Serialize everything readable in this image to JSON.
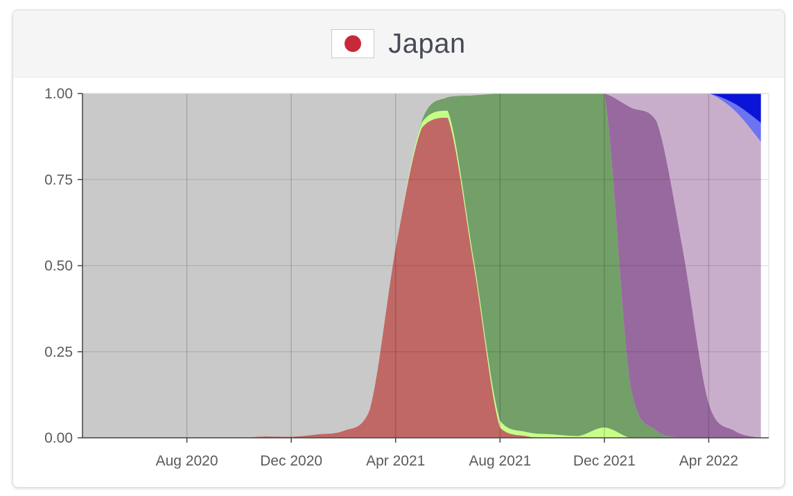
{
  "header": {
    "title": "Japan",
    "flag_icon": "japan-flag-icon"
  },
  "colors": {
    "background_other": "#c9c9c9",
    "alpha_red": "#c06865",
    "light_green": "#c6ff88",
    "delta_green": "#739f68",
    "omicron_purple": "#98699e",
    "omicron_lilac": "#c9aecb",
    "blue_dark": "#0a14d8",
    "blue_light": "#6b73ef"
  },
  "chart_data": {
    "type": "area",
    "stacked": true,
    "x_unit": "month",
    "x": [
      "2020-04",
      "2020-05",
      "2020-06",
      "2020-07",
      "2020-08",
      "2020-09",
      "2020-10",
      "2020-11",
      "2020-12",
      "2021-01",
      "2021-02",
      "2021-03",
      "2021-04",
      "2021-05",
      "2021-06",
      "2021-07",
      "2021-08",
      "2021-09",
      "2021-10",
      "2021-11",
      "2021-12",
      "2022-01",
      "2022-02",
      "2022-03",
      "2022-04",
      "2022-05",
      "2022-06"
    ],
    "ylim": [
      0,
      1
    ],
    "xlim": [
      "2020-04",
      "2022-06-10"
    ],
    "x_tick_labels": [
      "Aug 2020",
      "Dec 2020",
      "Apr 2021",
      "Aug 2021",
      "Dec 2021",
      "Apr 2022"
    ],
    "x_ticks": [
      "2020-08",
      "2020-12",
      "2021-04",
      "2021-08",
      "2021-12",
      "2022-04"
    ],
    "y_ticks": [
      0,
      0.25,
      0.5,
      0.75,
      1
    ],
    "y_tick_labels": [
      "0.00",
      "0.25",
      "0.50",
      "0.75",
      "1.00"
    ],
    "grid": true,
    "legend": false,
    "series": [
      {
        "key": "s1",
        "color": "#c06865",
        "values": [
          0,
          0,
          0,
          0,
          0,
          0,
          0,
          0.004,
          0.003,
          0.01,
          0.02,
          0.08,
          0.55,
          0.9,
          0.93,
          0.5,
          0.03,
          0.005,
          0,
          0,
          0,
          0,
          0,
          0,
          0,
          0,
          0
        ]
      },
      {
        "key": "s2",
        "color": "#c6ff88",
        "values": [
          0,
          0,
          0,
          0,
          0,
          0,
          0,
          0,
          0,
          0,
          0,
          0,
          0,
          0.015,
          0.02,
          0.015,
          0.02,
          0.012,
          0.01,
          0.005,
          0.03,
          0,
          0,
          0,
          0,
          0,
          0
        ]
      },
      {
        "key": "s3",
        "color": "#739f68",
        "values": [
          0,
          0,
          0,
          0,
          0,
          0,
          0,
          0,
          0,
          0,
          0,
          0,
          0,
          0.005,
          0.04,
          0.48,
          0.95,
          0.983,
          0.99,
          0.995,
          0.97,
          0.15,
          0.02,
          0,
          0,
          0,
          0
        ]
      },
      {
        "key": "s4",
        "color": "#98699e",
        "values": [
          0,
          0,
          0,
          0,
          0,
          0,
          0,
          0,
          0,
          0,
          0,
          0,
          0,
          0,
          0,
          0,
          0,
          0,
          0,
          0,
          0,
          0.81,
          0.9,
          0.55,
          0.1,
          0.02,
          0
        ]
      },
      {
        "key": "s5",
        "color": "#c9aecb",
        "values": [
          0,
          0,
          0,
          0,
          0,
          0,
          0,
          0,
          0,
          0,
          0,
          0,
          0,
          0,
          0,
          0,
          0,
          0,
          0,
          0,
          0,
          0.04,
          0.08,
          0.45,
          0.9,
          0.93,
          0.86
        ]
      },
      {
        "key": "s6",
        "color": "#6b73ef",
        "values": [
          0,
          0,
          0,
          0,
          0,
          0,
          0,
          0,
          0,
          0,
          0,
          0,
          0,
          0,
          0,
          0,
          0,
          0,
          0,
          0,
          0,
          0,
          0,
          0,
          0,
          0.02,
          0.055
        ]
      },
      {
        "key": "s7",
        "color": "#0a14d8",
        "values": [
          0,
          0,
          0,
          0,
          0,
          0,
          0,
          0,
          0,
          0,
          0,
          0,
          0,
          0,
          0,
          0,
          0,
          0,
          0,
          0,
          0,
          0,
          0,
          0,
          0,
          0.03,
          0.085
        ]
      },
      {
        "key": "other",
        "color": "#c9c9c9",
        "values": [
          1,
          1,
          1,
          1,
          1,
          1,
          1,
          0.996,
          0.997,
          0.99,
          0.98,
          0.92,
          0.45,
          0.08,
          0.01,
          0.005,
          0,
          0,
          0,
          0,
          0,
          0,
          0,
          0,
          0,
          0,
          0
        ]
      }
    ]
  }
}
